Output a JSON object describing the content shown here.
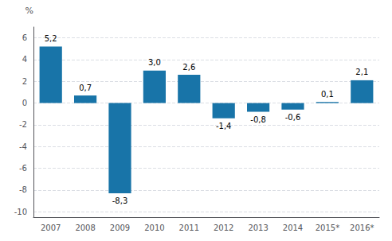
{
  "chart_data": {
    "type": "bar",
    "ylabel": "%",
    "categories": [
      "2007",
      "2008",
      "2009",
      "2010",
      "2011",
      "2012",
      "2013",
      "2014",
      "2015*",
      "2016*"
    ],
    "values": [
      5.2,
      0.7,
      -8.3,
      3.0,
      2.6,
      -1.4,
      -0.8,
      -0.6,
      0.1,
      2.1
    ],
    "value_labels": [
      "5,2",
      "0,7",
      "-8,3",
      "3,0",
      "2,6",
      "-1,4",
      "-0,8",
      "-0,6",
      "0,1",
      "2,1"
    ],
    "data_labels": true,
    "color": "#1874a8",
    "ylim": [
      -10.5,
      7.0
    ],
    "yticks": [
      -10,
      -8,
      -6,
      -4,
      -2,
      0,
      2,
      4,
      6
    ],
    "grid": true
  }
}
